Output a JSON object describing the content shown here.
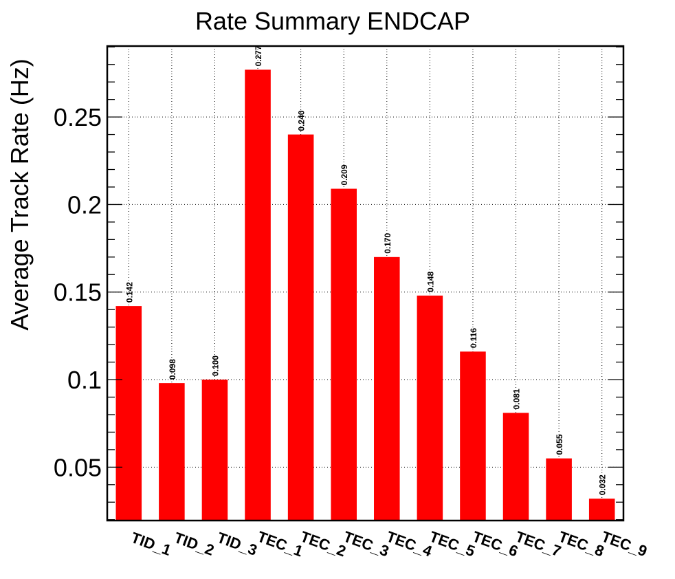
{
  "chart_data": {
    "type": "bar",
    "title": "Rate Summary ENDCAP",
    "xlabel": "",
    "ylabel": "Average Track Rate (Hz)",
    "categories": [
      "TID_1",
      "TID_2",
      "TID_3",
      "TEC_1",
      "TEC_2",
      "TEC_3",
      "TEC_4",
      "TEC_5",
      "TEC_6",
      "TEC_7",
      "TEC_8",
      "TEC_9"
    ],
    "values": [
      0.142,
      0.098,
      0.1,
      0.277,
      0.24,
      0.209,
      0.17,
      0.148,
      0.116,
      0.081,
      0.055,
      0.032
    ],
    "data_labels": [
      "0.142",
      "0.098",
      "0.100",
      "0.277",
      "0.240",
      "0.209",
      "0.170",
      "0.148",
      "0.116",
      "0.081",
      "0.055",
      "0.032"
    ],
    "ylim": [
      0.0195,
      0.2905
    ],
    "yticks": [
      0.05,
      0.1,
      0.15,
      0.2,
      0.25
    ],
    "ytick_labels": [
      "0.05",
      "0.1",
      "0.15",
      "0.2",
      "0.25"
    ],
    "grid": true,
    "legend": "none",
    "bar_color": "#ff0000"
  }
}
